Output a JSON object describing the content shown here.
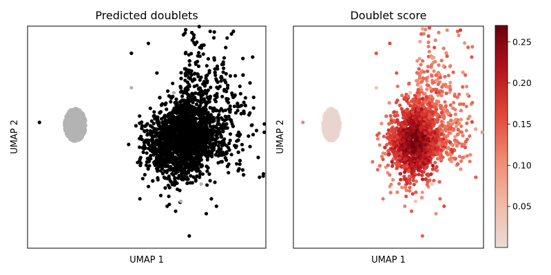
{
  "chart_data": [
    {
      "type": "scatter",
      "title": "Predicted doublets",
      "xlabel": "UMAP 1",
      "ylabel": "UMAP 2",
      "grid": false,
      "legend": "none",
      "colors": {
        "doublet": "#000000",
        "singlet": "#b3b3b3"
      },
      "clusters": [
        {
          "label": "singlet",
          "center": [
            -4.2,
            0.0
          ],
          "spread": [
            0.45,
            0.45
          ]
        },
        {
          "label": "doublet",
          "center": [
            1.9,
            -0.7
          ],
          "spread": [
            1.3,
            0.9
          ]
        }
      ],
      "outliers": [
        [
          -6.3,
          0.1,
          "doublet"
        ],
        [
          -0.9,
          2.9,
          "doublet"
        ],
        [
          0.1,
          3.3,
          "doublet"
        ],
        [
          0.6,
          2.1,
          "doublet"
        ],
        [
          2.3,
          1.3,
          "doublet"
        ],
        [
          3.2,
          1.0,
          "doublet"
        ],
        [
          4.8,
          0.9,
          "doublet"
        ],
        [
          5.4,
          -0.3,
          "doublet"
        ],
        [
          4.7,
          -1.1,
          "doublet"
        ],
        [
          5.6,
          -0.8,
          "doublet"
        ],
        [
          -0.4,
          -1.4,
          "doublet"
        ],
        [
          1.3,
          -2.9,
          "doublet"
        ],
        [
          0.1,
          -2.5,
          "doublet"
        ],
        [
          -0.4,
          -3.0,
          "doublet"
        ],
        [
          1.7,
          -3.5,
          "doublet"
        ],
        [
          1.2,
          -3.3,
          "doublet"
        ],
        [
          2.0,
          -3.1,
          "singlet"
        ],
        [
          3.8,
          -3.0,
          "doublet"
        ],
        [
          4.1,
          -3.3,
          "doublet"
        ],
        [
          3.5,
          -3.6,
          "doublet"
        ],
        [
          2.5,
          -4.5,
          "doublet"
        ],
        [
          3.2,
          -2.4,
          "singlet"
        ],
        [
          1.6,
          1.3,
          "singlet"
        ],
        [
          -0.9,
          1.5,
          "singlet"
        ]
      ],
      "xlim": [
        -7,
        7
      ],
      "ylim": [
        -5,
        4
      ]
    },
    {
      "type": "scatter",
      "title": "Doublet score",
      "xlabel": "UMAP 1",
      "ylabel": "UMAP 2",
      "grid": false,
      "legend": "colorbar-right",
      "colormap": "Reds",
      "colors": {
        "low": "#e8dcd8",
        "mid": "#ef6f55",
        "high": "#67000d"
      },
      "score_range": [
        0.0,
        0.27
      ],
      "colorbar_ticks": [
        "0.05",
        "0.10",
        "0.15",
        "0.20",
        "0.25"
      ],
      "clusters": [
        {
          "label": "low score cluster",
          "center": [
            -4.2,
            0.0
          ],
          "spread": [
            0.45,
            0.45
          ],
          "score": 0.005
        },
        {
          "label": "high score cluster",
          "center": [
            1.9,
            -0.7
          ],
          "spread": [
            1.3,
            0.9
          ],
          "score_min": 0.12,
          "score_max": 0.27
        }
      ],
      "xlim": [
        -7,
        7
      ],
      "ylim": [
        -5,
        4
      ]
    }
  ]
}
